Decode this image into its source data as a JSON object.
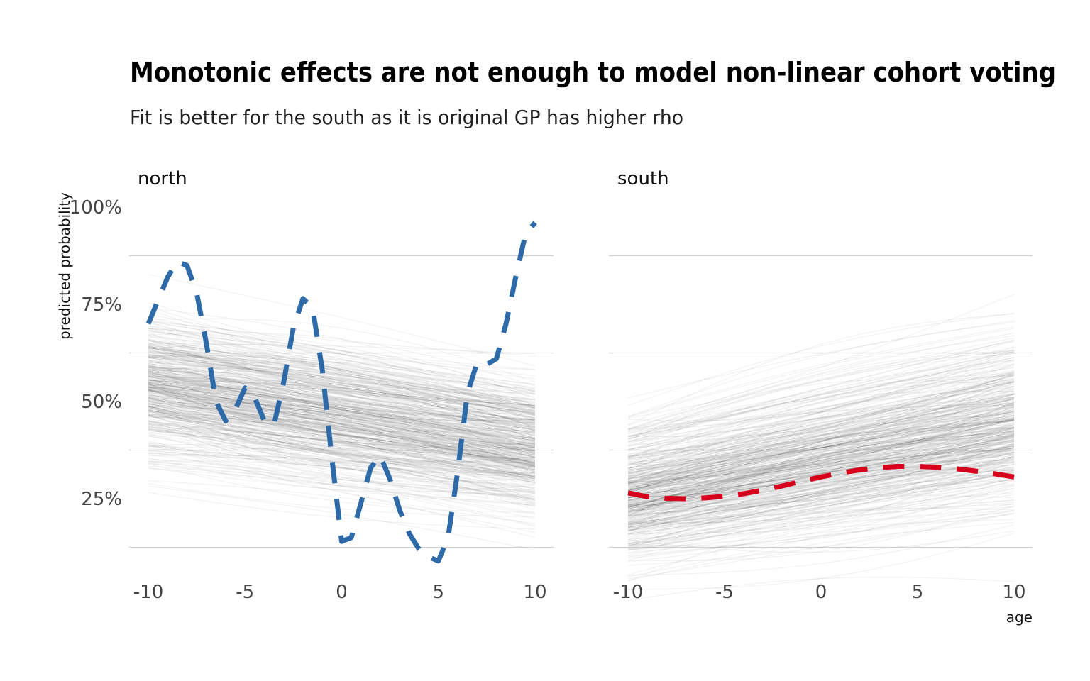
{
  "chart_data": {
    "type": "line",
    "title": "Monotonic effects are not enough to model non-linear cohort voting",
    "subtitle": "Fit is better for the south as it is original GP has higher rho",
    "xlabel": "age",
    "ylabel": "predicted probability",
    "xlim": [
      -10,
      10
    ],
    "x_ticks": [
      "-10",
      "-5",
      "0",
      "5",
      "10"
    ],
    "x_tick_values": [
      -10,
      -5,
      0,
      5,
      10
    ],
    "y_ticks": [
      "25%",
      "50%",
      "75%",
      "100%"
    ],
    "y_tick_values": [
      0.25,
      0.5,
      0.75,
      1.0
    ],
    "grid": true,
    "legend": "none",
    "panels": [
      {
        "name": "north",
        "draws_color": "#000000",
        "draws_count": 400,
        "draws_start": {
          "center": 0.535,
          "spread": 0.085
        },
        "draws_end": {
          "center": 0.38,
          "spread": 0.08
        },
        "true_curve": {
          "color": "#2e6aa8",
          "x": [
            -10,
            -9.5,
            -9,
            -8.5,
            -8,
            -7.5,
            -7,
            -6.5,
            -6,
            -5.5,
            -5,
            -4.5,
            -4,
            -3.5,
            -3,
            -2.5,
            -2,
            -1.5,
            -1,
            -0.5,
            0,
            0.5,
            1,
            1.5,
            2,
            2.5,
            3,
            3.5,
            4,
            4.5,
            5,
            5.5,
            6,
            6.5,
            7,
            7.5,
            8,
            8.5,
            9,
            9.5,
            10
          ],
          "y": [
            0.7,
            0.76,
            0.82,
            0.86,
            0.85,
            0.78,
            0.65,
            0.5,
            0.45,
            0.48,
            0.535,
            0.51,
            0.45,
            0.44,
            0.55,
            0.69,
            0.765,
            0.74,
            0.58,
            0.35,
            0.14,
            0.15,
            0.24,
            0.33,
            0.36,
            0.3,
            0.22,
            0.16,
            0.12,
            0.1,
            0.09,
            0.15,
            0.32,
            0.52,
            0.6,
            0.595,
            0.61,
            0.7,
            0.82,
            0.93,
            0.96
          ]
        }
      },
      {
        "name": "south",
        "draws_color": "#000000",
        "draws_count": 400,
        "draws_start": {
          "center": 0.25,
          "spread": 0.085
        },
        "draws_end": {
          "center": 0.435,
          "spread": 0.11
        },
        "true_curve": {
          "color": "#d7001c",
          "x": [
            -10,
            -9,
            -8,
            -7,
            -6,
            -5,
            -4,
            -3,
            -2,
            -1,
            0,
            1,
            2,
            3,
            4,
            5,
            6,
            7,
            8,
            9,
            10
          ],
          "y": [
            0.265,
            0.255,
            0.251,
            0.25,
            0.252,
            0.256,
            0.263,
            0.272,
            0.283,
            0.295,
            0.306,
            0.316,
            0.324,
            0.33,
            0.333,
            0.333,
            0.331,
            0.327,
            0.321,
            0.314,
            0.306
          ]
        }
      }
    ]
  }
}
